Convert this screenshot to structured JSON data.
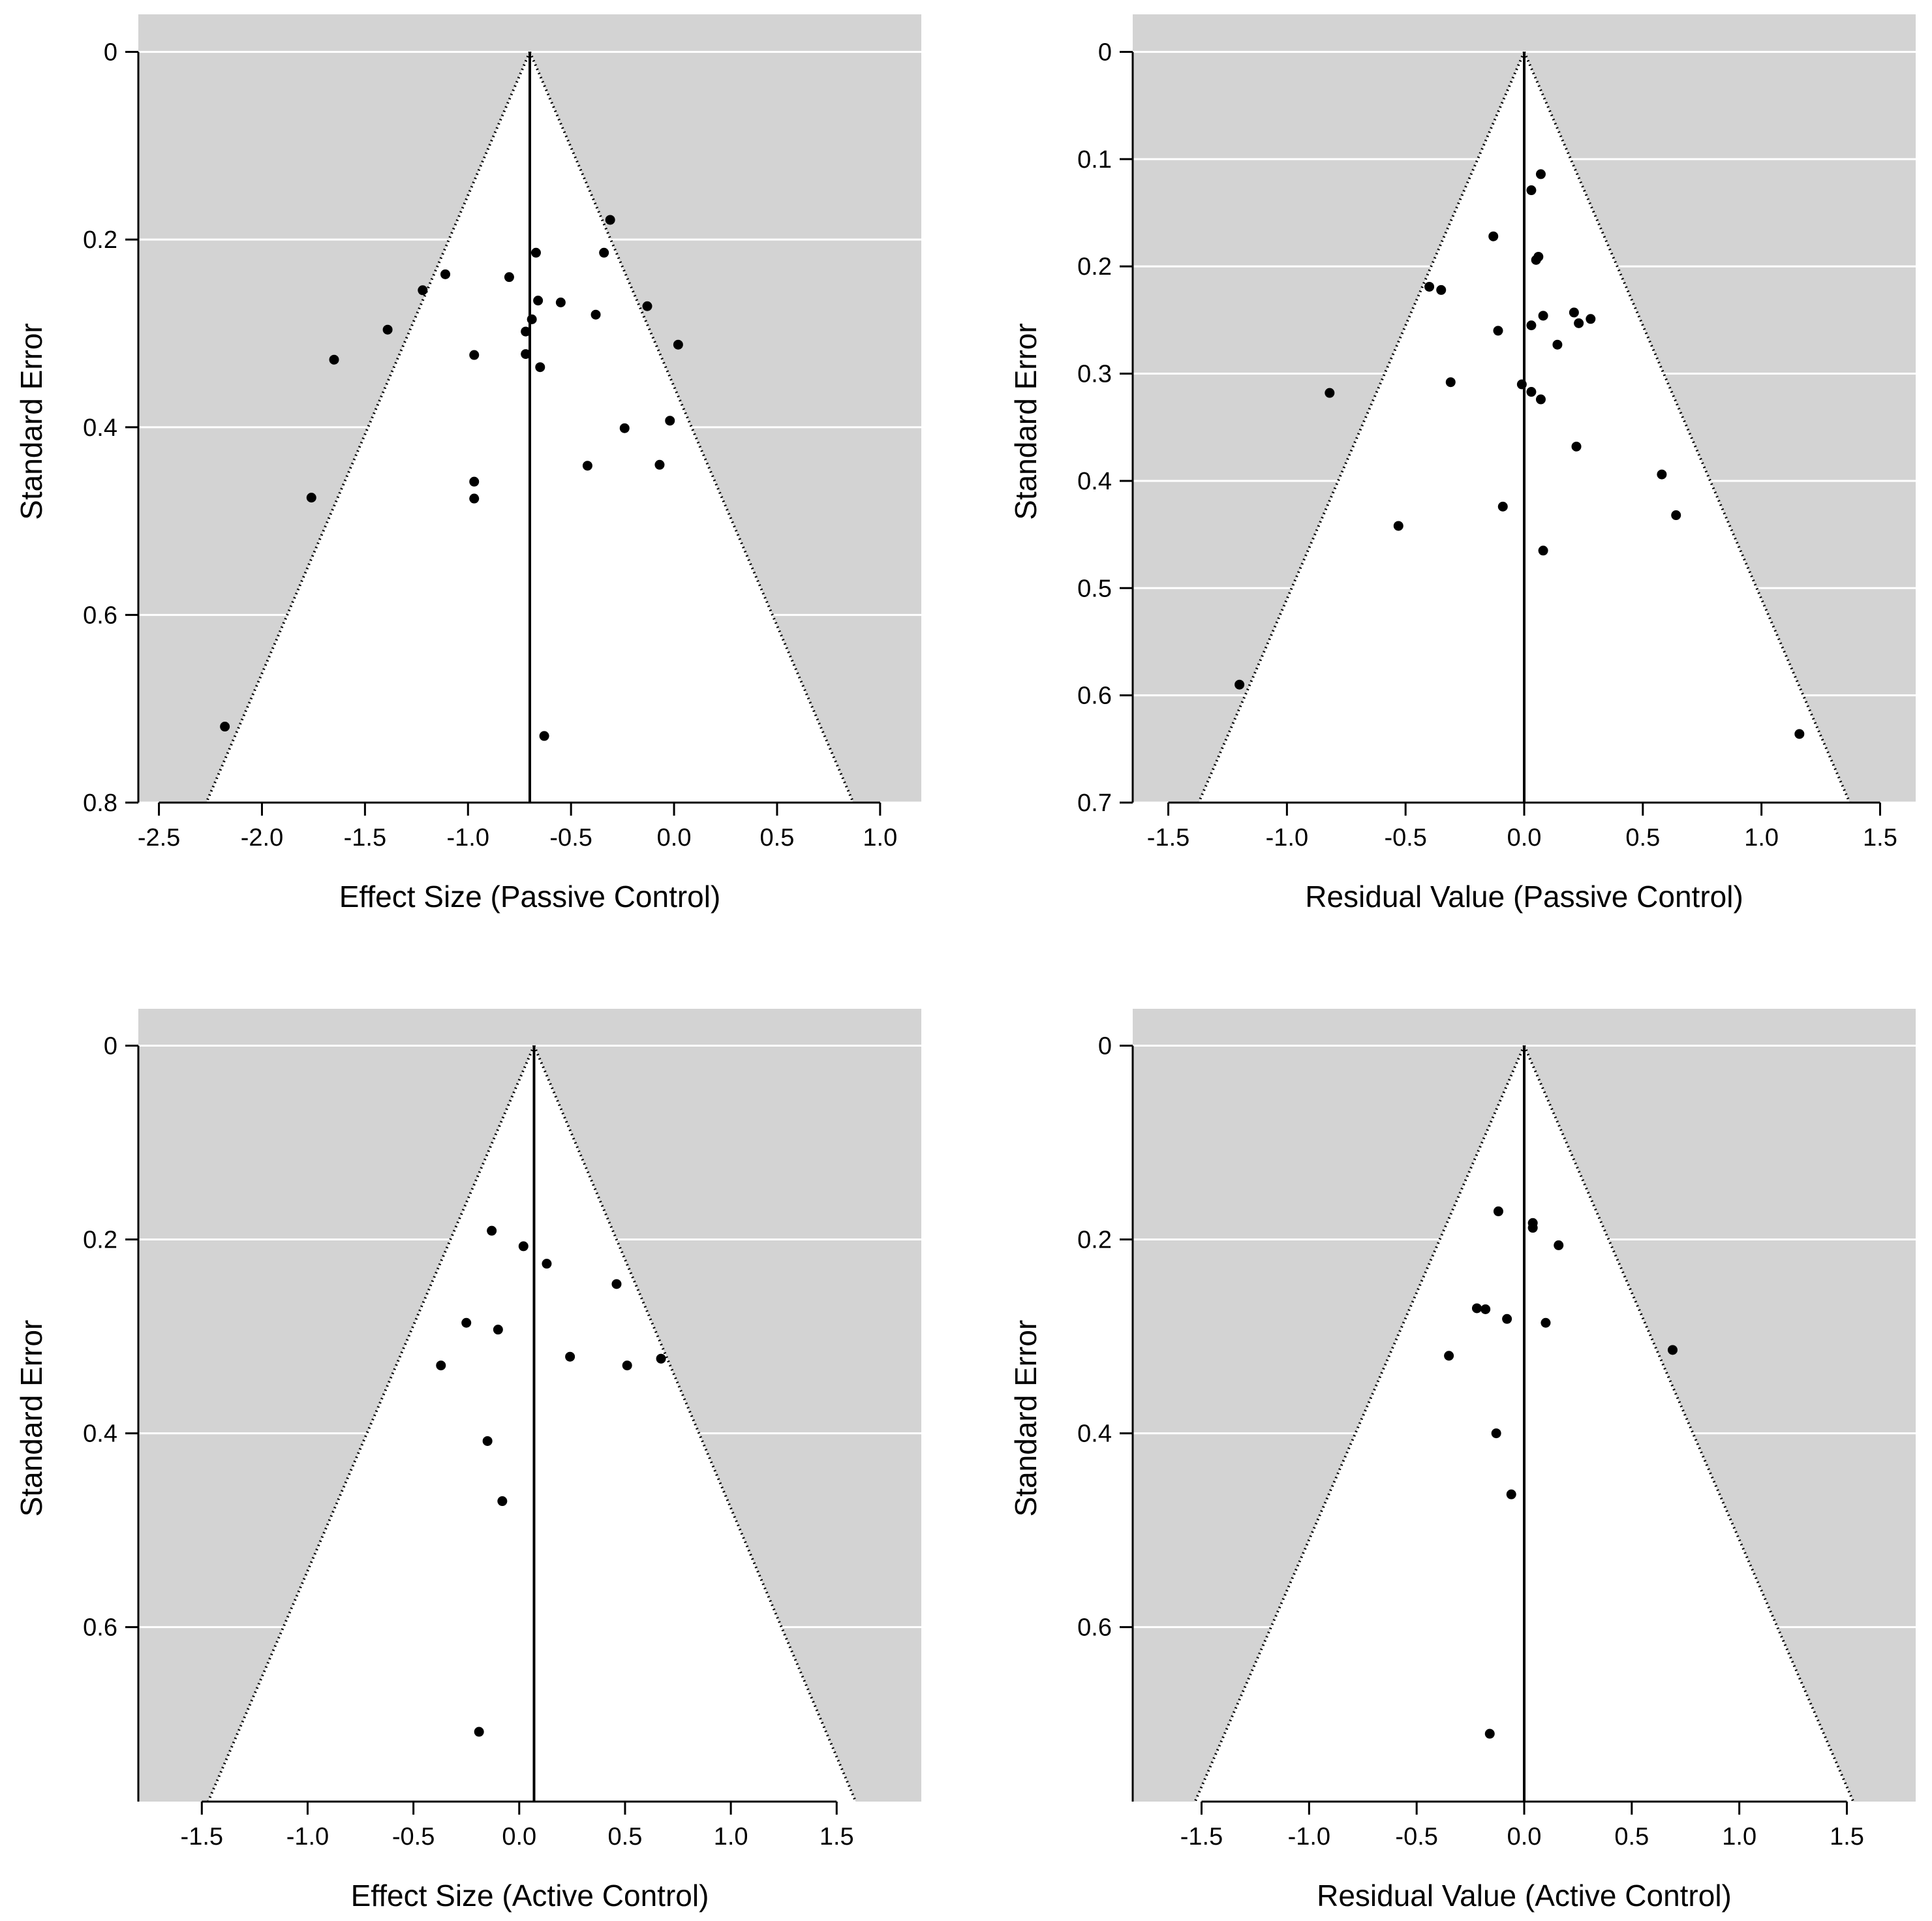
{
  "colors": {
    "background": "#d3d3d3",
    "funnel": "#ffffff",
    "grid": "#ffffff",
    "ink": "#000000"
  },
  "chart_data": [
    {
      "id": "passive-effect",
      "type": "scatter",
      "subtype": "funnel",
      "title": "",
      "xlabel": "Effect Size (Passive Control)",
      "ylabel": "Standard Error",
      "xlim": [
        -2.6,
        1.2
      ],
      "ylim": [
        0,
        0.8
      ],
      "y_top_pad": 0.04,
      "center": -0.7,
      "funnel_edge_x": [
        -2.27,
        0.87
      ],
      "xticks": [
        -2.5,
        -2.0,
        -1.5,
        -1.0,
        -0.5,
        0.0,
        0.5,
        1.0
      ],
      "xtick_labels": [
        "-2.5",
        "-2.0",
        "-1.5",
        "-1.0",
        "-0.5",
        "0.0",
        "0.5",
        "1.0"
      ],
      "yticks": [
        0,
        0.2,
        0.4,
        0.6,
        0.8
      ],
      "ytick_labels": [
        "0",
        "0.2",
        "0.4",
        "0.6",
        "0.8"
      ],
      "points": [
        [
          -0.31,
          0.179
        ],
        [
          -0.67,
          0.214
        ],
        [
          -0.34,
          0.214
        ],
        [
          -1.11,
          0.237
        ],
        [
          -0.8,
          0.24
        ],
        [
          -1.22,
          0.254
        ],
        [
          -0.66,
          0.265
        ],
        [
          -0.55,
          0.267
        ],
        [
          -0.13,
          0.271
        ],
        [
          -0.38,
          0.28
        ],
        [
          -0.69,
          0.285
        ],
        [
          -1.39,
          0.296
        ],
        [
          -0.72,
          0.298
        ],
        [
          0.02,
          0.312
        ],
        [
          -0.72,
          0.322
        ],
        [
          -0.97,
          0.323
        ],
        [
          -1.65,
          0.328
        ],
        [
          -0.65,
          0.336
        ],
        [
          -0.02,
          0.393
        ],
        [
          -0.24,
          0.401
        ],
        [
          -0.42,
          0.441
        ],
        [
          -0.07,
          0.44
        ],
        [
          -0.97,
          0.458
        ],
        [
          -1.76,
          0.475
        ],
        [
          -0.97,
          0.476
        ],
        [
          -2.18,
          0.719
        ],
        [
          -0.63,
          0.729
        ]
      ]
    },
    {
      "id": "passive-residual",
      "type": "scatter",
      "subtype": "funnel",
      "title": "",
      "xlabel": "Residual Value (Passive Control)",
      "ylabel": "Standard Error",
      "xlim": [
        -1.65,
        1.65
      ],
      "ylim": [
        0,
        0.7
      ],
      "y_top_pad": 0.035,
      "center": 0.0,
      "funnel_edge_x": [
        -1.372,
        1.372
      ],
      "xticks": [
        -1.5,
        -1.0,
        -0.5,
        0.0,
        0.5,
        1.0,
        1.5
      ],
      "xtick_labels": [
        "-1.5",
        "-1.0",
        "-0.5",
        "0.0",
        "0.5",
        "1.0",
        "1.5"
      ],
      "yticks": [
        0,
        0.1,
        0.2,
        0.3,
        0.4,
        0.5,
        0.6,
        0.7
      ],
      "ytick_labels": [
        "0",
        "0.1",
        "0.2",
        "0.3",
        "0.4",
        "0.5",
        "0.6",
        "0.7"
      ],
      "points": [
        [
          0.07,
          0.114
        ],
        [
          0.03,
          0.129
        ],
        [
          -0.13,
          0.172
        ],
        [
          0.06,
          0.191
        ],
        [
          0.05,
          0.194
        ],
        [
          -0.4,
          0.219
        ],
        [
          -0.35,
          0.222
        ],
        [
          0.21,
          0.243
        ],
        [
          0.08,
          0.246
        ],
        [
          0.28,
          0.249
        ],
        [
          0.23,
          0.253
        ],
        [
          0.03,
          0.255
        ],
        [
          -0.11,
          0.26
        ],
        [
          0.14,
          0.273
        ],
        [
          -0.31,
          0.308
        ],
        [
          -0.01,
          0.31
        ],
        [
          0.03,
          0.317
        ],
        [
          -0.82,
          0.318
        ],
        [
          0.07,
          0.324
        ],
        [
          0.22,
          0.368
        ],
        [
          0.58,
          0.394
        ],
        [
          -0.09,
          0.424
        ],
        [
          0.64,
          0.432
        ],
        [
          -0.53,
          0.442
        ],
        [
          0.08,
          0.465
        ],
        [
          -1.2,
          0.59
        ],
        [
          1.16,
          0.636
        ]
      ]
    },
    {
      "id": "active-effect",
      "type": "scatter",
      "subtype": "funnel",
      "title": "",
      "xlabel": "Effect Size (Active Control)",
      "ylabel": "Standard Error",
      "xlim": [
        -1.8,
        1.9
      ],
      "ylim": [
        0,
        0.78
      ],
      "y_top_pad": 0.038,
      "center": 0.07,
      "funnel_edge_x": [
        -1.47,
        1.59
      ],
      "xticks": [
        -1.5,
        -1.0,
        -0.5,
        0.0,
        0.5,
        1.0,
        1.5
      ],
      "xtick_labels": [
        "-1.5",
        "-1.0",
        "-0.5",
        "0.0",
        "0.5",
        "1.0",
        "1.5"
      ],
      "yticks": [
        0,
        0.2,
        0.4,
        0.6
      ],
      "ytick_labels": [
        "0",
        "0.2",
        "0.4",
        "0.6"
      ],
      "points": [
        [
          -0.13,
          0.191
        ],
        [
          0.02,
          0.207
        ],
        [
          0.13,
          0.225
        ],
        [
          0.46,
          0.246
        ],
        [
          -0.25,
          0.286
        ],
        [
          -0.1,
          0.293
        ],
        [
          0.24,
          0.321
        ],
        [
          0.67,
          0.323
        ],
        [
          -0.37,
          0.33
        ],
        [
          0.51,
          0.33
        ],
        [
          -0.15,
          0.408
        ],
        [
          -0.08,
          0.47
        ],
        [
          -0.19,
          0.708
        ]
      ]
    },
    {
      "id": "active-residual",
      "type": "scatter",
      "subtype": "funnel",
      "title": "",
      "xlabel": "Residual Value (Active Control)",
      "ylabel": "Standard Error",
      "xlim": [
        -1.82,
        1.82
      ],
      "ylim": [
        0,
        0.78
      ],
      "y_top_pad": 0.038,
      "center": 0.0,
      "funnel_edge_x": [
        -1.53,
        1.53
      ],
      "xticks": [
        -1.5,
        -1.0,
        -0.5,
        0.0,
        0.5,
        1.0,
        1.5
      ],
      "xtick_labels": [
        "-1.5",
        "-1.0",
        "-0.5",
        "0.0",
        "0.5",
        "1.0",
        "1.5"
      ],
      "yticks": [
        0,
        0.2,
        0.4,
        0.6
      ],
      "ytick_labels": [
        "0",
        "0.2",
        "0.4",
        "0.6"
      ],
      "points": [
        [
          0.04,
          0.183
        ],
        [
          0.04,
          0.188
        ],
        [
          -0.12,
          0.171
        ],
        [
          0.16,
          0.206
        ],
        [
          -0.22,
          0.271
        ],
        [
          -0.18,
          0.272
        ],
        [
          -0.08,
          0.282
        ],
        [
          0.1,
          0.286
        ],
        [
          -0.35,
          0.32
        ],
        [
          0.69,
          0.314
        ],
        [
          -0.13,
          0.4
        ],
        [
          -0.06,
          0.463
        ],
        [
          -0.16,
          0.71
        ]
      ]
    }
  ]
}
